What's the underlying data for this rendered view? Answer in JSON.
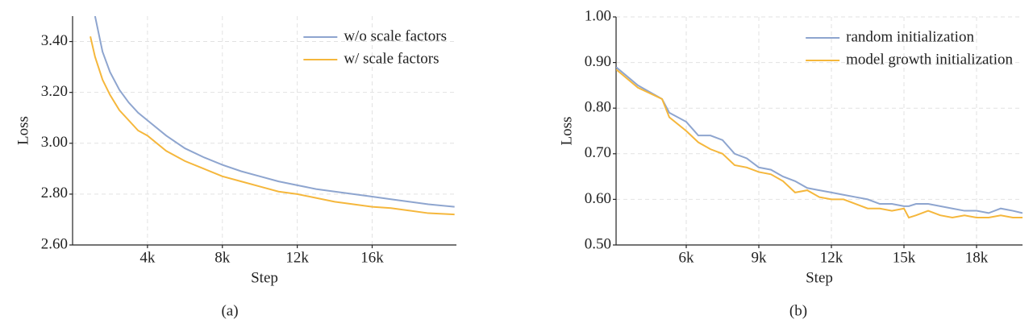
{
  "chart_data": [
    {
      "type": "line",
      "caption": "(a)",
      "xlabel": "Step",
      "ylabel": "Loss",
      "x": [
        950,
        1200,
        1600,
        2000,
        2500,
        3000,
        3500,
        4000,
        5000,
        6000,
        7000,
        8000,
        9000,
        10000,
        11000,
        12000,
        13000,
        14000,
        15000,
        16000,
        17000,
        18000,
        19000,
        20400
      ],
      "series": [
        {
          "name": "w/o scale factors",
          "color": "#8ea5cf",
          "values": [
            null,
            3.5,
            3.36,
            3.28,
            3.21,
            3.16,
            3.12,
            3.09,
            3.03,
            2.98,
            2.945,
            2.915,
            2.89,
            2.87,
            2.85,
            2.835,
            2.82,
            2.81,
            2.8,
            2.79,
            2.78,
            2.77,
            2.76,
            2.75
          ]
        },
        {
          "name": "w/ scale factors",
          "color": "#f5b73c",
          "values": [
            3.42,
            3.34,
            3.25,
            3.19,
            3.13,
            3.09,
            3.05,
            3.03,
            2.97,
            2.93,
            2.9,
            2.87,
            2.85,
            2.83,
            2.81,
            2.8,
            2.785,
            2.77,
            2.76,
            2.75,
            2.745,
            2.735,
            2.725,
            2.72
          ]
        }
      ],
      "xlim": [
        0,
        20500
      ],
      "xticks": [
        {
          "value": 4000,
          "label": "4k"
        },
        {
          "value": 8000,
          "label": "8k"
        },
        {
          "value": 12000,
          "label": "12k"
        },
        {
          "value": 16000,
          "label": "16k"
        }
      ],
      "ylim": [
        2.6,
        3.5
      ],
      "yticks": [
        {
          "value": 2.6,
          "label": "2.60"
        },
        {
          "value": 2.8,
          "label": "2.80"
        },
        {
          "value": 3.0,
          "label": "3.00"
        },
        {
          "value": 3.2,
          "label": "3.20"
        },
        {
          "value": 3.4,
          "label": "3.40"
        }
      ],
      "grid": true,
      "legend": "upper right"
    },
    {
      "type": "line",
      "caption": "(b)",
      "xlabel": "Step",
      "ylabel": "Loss",
      "x": [
        3100,
        4000,
        5000,
        5300,
        6000,
        6500,
        7000,
        7500,
        8000,
        8500,
        9000,
        9500,
        10000,
        10500,
        11000,
        11500,
        12000,
        12500,
        13000,
        13500,
        14000,
        14500,
        15000,
        15200,
        15500,
        16000,
        16500,
        17000,
        17500,
        18000,
        18500,
        19000,
        19500,
        19900
      ],
      "series": [
        {
          "name": "random initialization",
          "color": "#8ea5cf",
          "values": [
            0.89,
            0.85,
            0.82,
            0.79,
            0.77,
            0.74,
            0.74,
            0.73,
            0.7,
            0.69,
            0.67,
            0.665,
            0.65,
            0.64,
            0.625,
            0.62,
            0.615,
            0.61,
            0.605,
            0.6,
            0.59,
            0.59,
            0.585,
            0.585,
            0.59,
            0.59,
            0.585,
            0.58,
            0.575,
            0.575,
            0.57,
            0.58,
            0.575,
            0.57
          ]
        },
        {
          "name": "model growth initialization",
          "color": "#f5b73c",
          "values": [
            0.885,
            0.845,
            0.82,
            0.78,
            0.75,
            0.725,
            0.71,
            0.7,
            0.675,
            0.67,
            0.66,
            0.655,
            0.64,
            0.615,
            0.62,
            0.605,
            0.6,
            0.6,
            0.59,
            0.58,
            0.58,
            0.575,
            0.58,
            0.56,
            0.565,
            0.575,
            0.565,
            0.56,
            0.565,
            0.56,
            0.56,
            0.565,
            0.56,
            0.56
          ]
        }
      ],
      "xlim": [
        3100,
        19900
      ],
      "xticks": [
        {
          "value": 6000,
          "label": "6k"
        },
        {
          "value": 9000,
          "label": "9k"
        },
        {
          "value": 12000,
          "label": "12k"
        },
        {
          "value": 15000,
          "label": "15k"
        },
        {
          "value": 18000,
          "label": "18k"
        }
      ],
      "ylim": [
        0.5,
        1.0
      ],
      "yticks": [
        {
          "value": 0.5,
          "label": "0.50"
        },
        {
          "value": 0.6,
          "label": "0.60"
        },
        {
          "value": 0.7,
          "label": "0.70"
        },
        {
          "value": 0.8,
          "label": "0.80"
        },
        {
          "value": 0.9,
          "label": "0.90"
        },
        {
          "value": 1.0,
          "label": "1.00"
        }
      ],
      "grid": true,
      "legend": "upper right"
    }
  ]
}
